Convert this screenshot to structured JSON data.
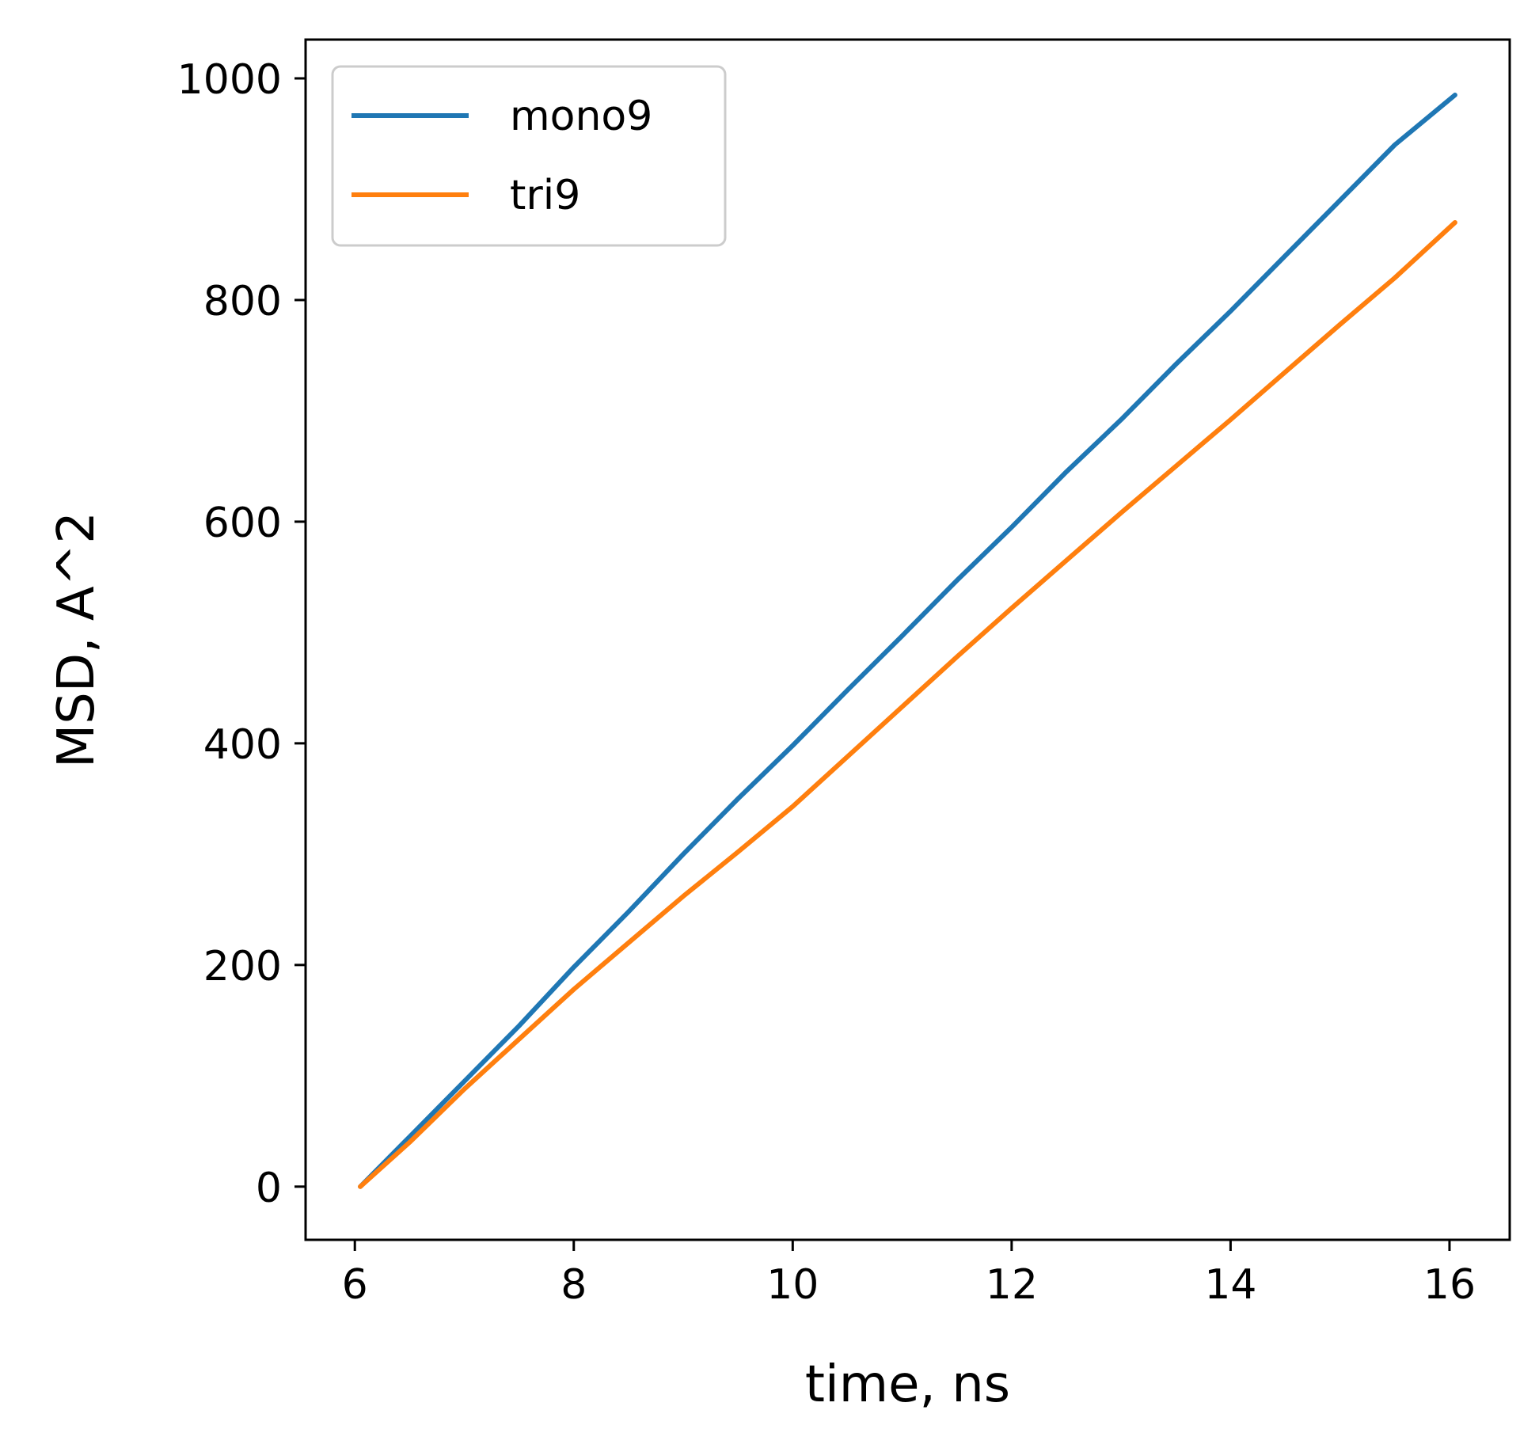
{
  "chart_data": {
    "type": "line",
    "title": "",
    "xlabel": "time, ns",
    "ylabel": "MSD, A^2",
    "xlim": [
      5.55,
      16.55
    ],
    "ylim": [
      -48,
      1035
    ],
    "xticks": [
      6,
      8,
      10,
      12,
      14,
      16
    ],
    "yticks": [
      0,
      200,
      400,
      600,
      800,
      1000
    ],
    "xtick_labels": [
      "6",
      "8",
      "10",
      "12",
      "14",
      "16"
    ],
    "ytick_labels": [
      "0",
      "200",
      "400",
      "600",
      "800",
      "1000"
    ],
    "grid": false,
    "legend_position": "upper-left",
    "series": [
      {
        "name": "mono9",
        "color": "#1f77b4",
        "x": [
          6.05,
          6.5,
          7.0,
          7.5,
          8.0,
          8.5,
          9.0,
          9.5,
          10.0,
          10.5,
          11.0,
          11.5,
          12.0,
          12.5,
          13.0,
          13.5,
          14.0,
          14.5,
          15.0,
          15.5,
          16.05
        ],
        "y": [
          0,
          45,
          95,
          145,
          198,
          248,
          300,
          350,
          398,
          448,
          497,
          547,
          595,
          645,
          692,
          742,
          790,
          840,
          890,
          940,
          985
        ]
      },
      {
        "name": "tri9",
        "color": "#ff7f0e",
        "x": [
          6.05,
          6.5,
          7.0,
          7.5,
          8.0,
          8.5,
          9.0,
          9.5,
          10.0,
          10.5,
          11.0,
          11.5,
          12.0,
          12.5,
          13.0,
          13.5,
          14.0,
          14.5,
          15.0,
          15.5,
          16.05
        ],
        "y": [
          0,
          40,
          88,
          133,
          178,
          220,
          262,
          302,
          343,
          388,
          433,
          478,
          522,
          565,
          608,
          650,
          692,
          735,
          778,
          820,
          870
        ]
      }
    ]
  }
}
